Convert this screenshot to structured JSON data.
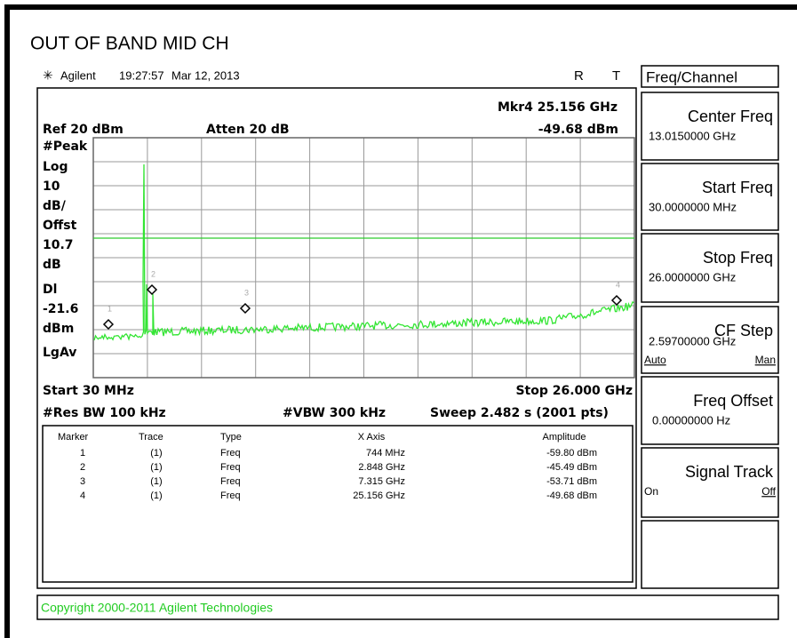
{
  "title": "OUT OF BAND MID CH",
  "status": {
    "brand": "Agilent",
    "time": "19:27:57",
    "date": "Mar 12, 2013",
    "r": "R",
    "t": "T"
  },
  "display": {
    "ref": "Ref 20 dBm",
    "atten": "Atten 20 dB",
    "marker_freq": "Mkr4 25.156 GHz",
    "marker_amp": "-49.68 dBm",
    "left_labels": [
      "#Peak",
      "Log",
      "10",
      "dB/",
      "Offst",
      "10.7",
      "dB",
      "Dl",
      "-21.6",
      "dBm",
      "LgAv"
    ],
    "start": "Start 30 MHz",
    "stop": "Stop 26.000 GHz",
    "rbw": "#Res BW 100 kHz",
    "vbw": "#VBW 300 kHz",
    "sweep": "Sweep 2.482 s (2001 pts)",
    "marker_ids": [
      "1",
      "2",
      "3",
      "4"
    ]
  },
  "table": {
    "header": [
      "Marker",
      "Trace",
      "Type",
      "X Axis",
      "Amplitude"
    ],
    "rows": [
      [
        "1",
        "(1)",
        "Freq",
        "744 MHz",
        "-59.80 dBm"
      ],
      [
        "2",
        "(1)",
        "Freq",
        "2.848 GHz",
        "-45.49 dBm"
      ],
      [
        "3",
        "(1)",
        "Freq",
        "7.315 GHz",
        "-53.71 dBm"
      ],
      [
        "4",
        "(1)",
        "Freq",
        "25.156 GHz",
        "-49.68 dBm"
      ]
    ]
  },
  "footer": "Copyright 2000-2011 Agilent Technologies",
  "menu": {
    "title": "Freq/Channel",
    "buttons": [
      {
        "label": "Center Freq",
        "value": "13.0150000 GHz"
      },
      {
        "label": "Start Freq",
        "value": "30.0000000 MHz"
      },
      {
        "label": "Stop Freq",
        "value": "26.0000000 GHz"
      },
      {
        "label": "CF Step",
        "value": "2.59700000 GHz",
        "left": "Auto",
        "right": "Man"
      },
      {
        "label": "Freq Offset",
        "value": "0.00000000  Hz"
      },
      {
        "label": "Signal Track",
        "left": "On",
        "right": "Off"
      }
    ]
  }
}
